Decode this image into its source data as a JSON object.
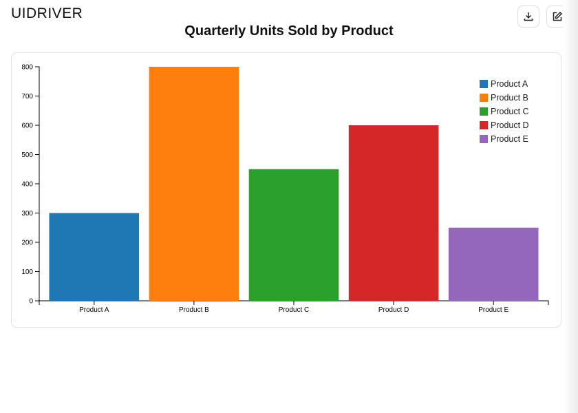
{
  "app": {
    "logo": "UIDRIVER"
  },
  "chart_data": {
    "type": "bar",
    "title": "Quarterly Units Sold by Product",
    "categories": [
      "Product A",
      "Product B",
      "Product C",
      "Product D",
      "Product E"
    ],
    "values": [
      300,
      800,
      450,
      600,
      250
    ],
    "colors": [
      "#1f77b4",
      "#ff7f0e",
      "#2ca02c",
      "#d62728",
      "#9467bd"
    ],
    "ylim": [
      0,
      800
    ],
    "yticks": [
      0,
      100,
      200,
      300,
      400,
      500,
      600,
      700,
      800
    ],
    "grid": false,
    "legend": "top-right"
  }
}
